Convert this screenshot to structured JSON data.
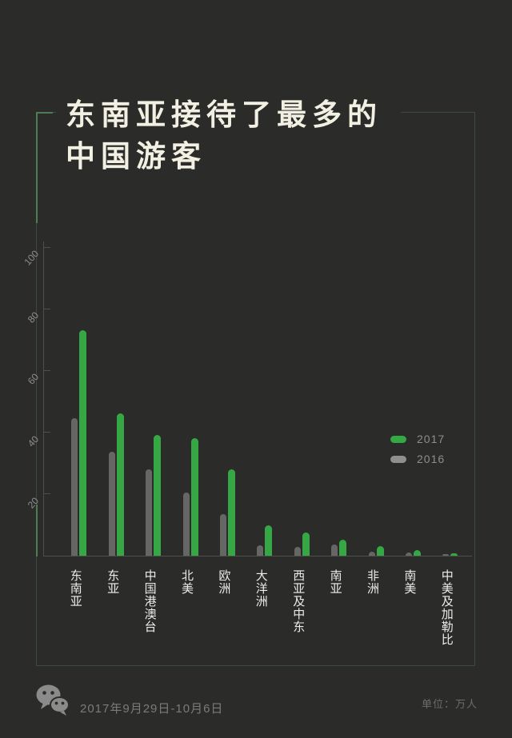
{
  "page": {
    "bg_color": "#2b2b29",
    "frame_border_color": "#3d4a40",
    "frame_accent_color": "#4e7d55",
    "accent_green": "#35a845"
  },
  "title": {
    "line1": "东南亚接待了最多的",
    "line2": "中国游客"
  },
  "chart_data": {
    "type": "bar",
    "title": "东南亚接待了最多的中国游客",
    "unit": "万人",
    "categories": [
      "东南亚",
      "东亚",
      "中国港澳台",
      "北美",
      "欧洲",
      "大洋洲",
      "西亚及中东",
      "南亚",
      "非洲",
      "南美",
      "中美及加勒比"
    ],
    "series": [
      {
        "name": "2017",
        "color": "#35a845",
        "values": [
          73,
          46,
          39,
          38,
          28,
          9.8,
          7.5,
          5.2,
          3.1,
          1.8,
          0.9
        ]
      },
      {
        "name": "2016",
        "color": "#666664",
        "values": [
          44.5,
          33.8,
          27.9,
          20.4,
          13.4,
          3.4,
          2.8,
          3.6,
          1.3,
          1,
          0.4
        ]
      }
    ],
    "yticks": [
      100,
      80,
      60,
      40,
      20
    ],
    "ylim": [
      0,
      102
    ],
    "grid": false,
    "legend_position": "right-middle",
    "x_label_orientation": "vertical",
    "y_label_orientation": "rotated-48deg"
  },
  "legend": {
    "items": [
      {
        "label": "2017",
        "color": "#35a845"
      },
      {
        "label": "2016",
        "color": "#8f8f8f"
      }
    ]
  },
  "footer": {
    "logo_icon": "wechat-icon",
    "date_range": "2017年9月29日-10月6日",
    "unit_label": "单位：万人"
  }
}
